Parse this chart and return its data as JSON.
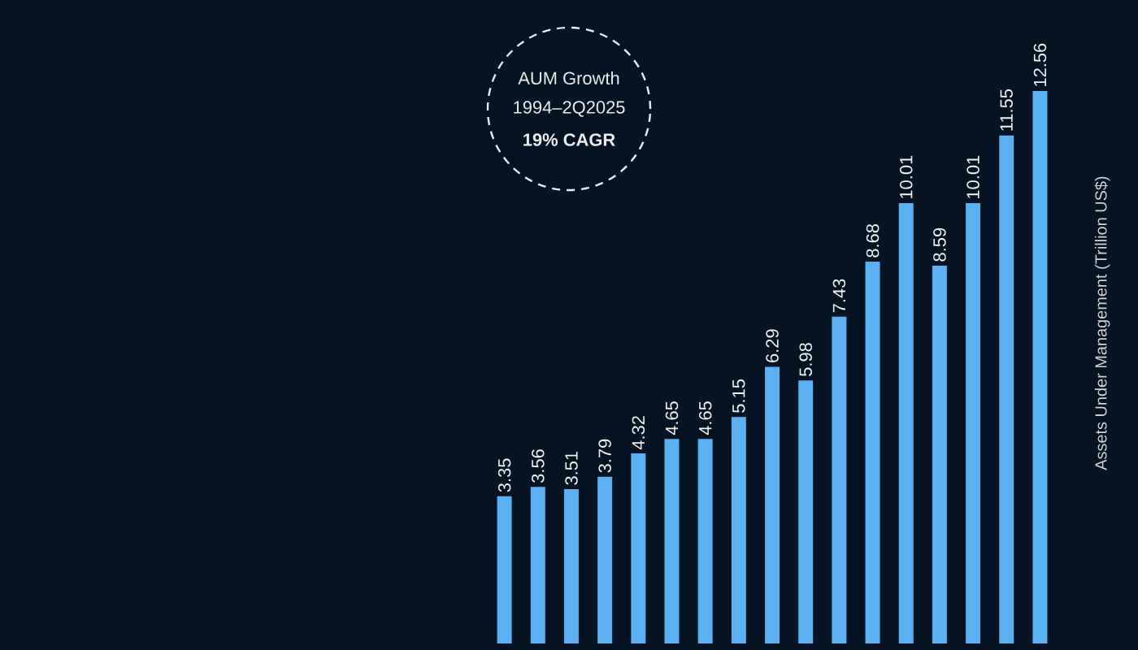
{
  "chart_data": {
    "type": "bar",
    "ylabel": "Assets Under Management (Trillion US$)",
    "annotations": [
      "AUM Growth",
      "1994–2Q2025",
      "19% CAGR"
    ],
    "categories": [
      null,
      null,
      null,
      null,
      null,
      null,
      null,
      null,
      null,
      null,
      null,
      null,
      null,
      null,
      null,
      null,
      null
    ],
    "values": [
      3.35,
      3.56,
      3.51,
      3.79,
      4.32,
      4.65,
      4.65,
      5.15,
      6.29,
      5.98,
      7.43,
      8.68,
      10.01,
      8.59,
      10.01,
      11.55,
      12.56
    ],
    "color": "#5ab0f0",
    "data_labels": true,
    "tick_labels": false,
    "grid": false
  }
}
